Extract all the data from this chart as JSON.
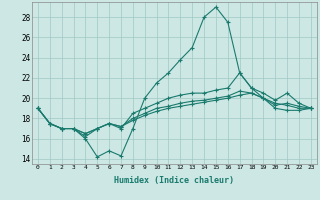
{
  "xlabel": "Humidex (Indice chaleur)",
  "x_ticks": [
    0,
    1,
    2,
    3,
    4,
    5,
    6,
    7,
    8,
    9,
    10,
    11,
    12,
    13,
    14,
    15,
    16,
    17,
    18,
    19,
    20,
    21,
    22,
    23
  ],
  "y_ticks": [
    14,
    16,
    18,
    20,
    22,
    24,
    26,
    28
  ],
  "ylim": [
    13.5,
    29.5
  ],
  "xlim": [
    -0.5,
    23.5
  ],
  "background_color": "#cde8e4",
  "grid_color": "#a0c8c4",
  "line_color": "#1a7a6e",
  "s1_y": [
    19.0,
    17.5,
    17.0,
    17.0,
    16.0,
    14.2,
    14.8,
    14.3,
    17.0,
    20.0,
    21.5,
    22.5,
    23.8,
    25.0,
    28.0,
    29.0,
    27.5,
    22.5,
    21.0,
    20.0,
    19.5,
    19.3,
    19.0,
    19.0
  ],
  "s2_y": [
    19.0,
    17.5,
    17.0,
    17.0,
    16.2,
    17.0,
    17.5,
    17.0,
    18.5,
    19.0,
    19.5,
    20.0,
    20.3,
    20.5,
    20.5,
    20.8,
    21.0,
    22.5,
    21.0,
    20.5,
    19.8,
    20.5,
    19.5,
    19.0
  ],
  "s3_y": [
    19.0,
    17.5,
    17.0,
    17.0,
    16.5,
    17.0,
    17.5,
    17.2,
    18.0,
    18.5,
    19.0,
    19.2,
    19.5,
    19.7,
    19.8,
    20.0,
    20.2,
    20.7,
    20.5,
    20.0,
    19.3,
    19.5,
    19.2,
    19.0
  ],
  "s4_y": [
    19.0,
    17.5,
    17.0,
    17.0,
    16.5,
    17.0,
    17.5,
    17.2,
    17.8,
    18.3,
    18.7,
    19.0,
    19.2,
    19.4,
    19.6,
    19.8,
    20.0,
    20.3,
    20.5,
    20.0,
    19.0,
    18.8,
    18.8,
    19.0
  ]
}
